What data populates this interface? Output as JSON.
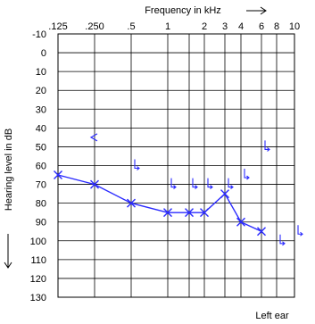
{
  "chart_data": {
    "type": "line",
    "title": "Frequency in kHz",
    "ylabel": "Hearing level in dB",
    "annotation": "Left ear",
    "x_scale": "log",
    "x_ticks": [
      0.125,
      0.25,
      0.5,
      1,
      1.5,
      2,
      3,
      4,
      6,
      8,
      10
    ],
    "x_tick_labels": [
      ".125",
      ".250",
      ".5",
      "1",
      "",
      "2",
      "3",
      "4",
      "6",
      "8",
      "10"
    ],
    "ylim": [
      -10,
      130
    ],
    "y_ticks": [
      -10,
      0,
      10,
      20,
      30,
      40,
      50,
      60,
      70,
      80,
      90,
      100,
      110,
      120,
      130
    ],
    "y_inverted": true,
    "grid": true,
    "colors": {
      "series": "#2a2aff",
      "axis": "#000000",
      "grid": "#000000"
    },
    "series": [
      {
        "marker": "x",
        "x": [
          0.125,
          0.25,
          0.5,
          1,
          1.5,
          2,
          3,
          4,
          6
        ],
        "y": [
          65,
          70,
          80,
          85,
          85,
          85,
          75,
          90,
          95
        ]
      }
    ],
    "bone_conduction_left": [
      {
        "x": 0.25,
        "y": 45,
        "symbol": "<"
      }
    ],
    "bone_conduction_masked": [
      {
        "x": 0.5,
        "y": 60
      },
      {
        "x": 1,
        "y": 70
      },
      {
        "x": 1.5,
        "y": 70
      },
      {
        "x": 2,
        "y": 70
      },
      {
        "x": 3,
        "y": 70
      },
      {
        "x": 4,
        "y": 65
      },
      {
        "x": 6,
        "y": 50
      },
      {
        "x": 8,
        "y": 100
      },
      {
        "x": 10,
        "y": 95
      }
    ]
  }
}
